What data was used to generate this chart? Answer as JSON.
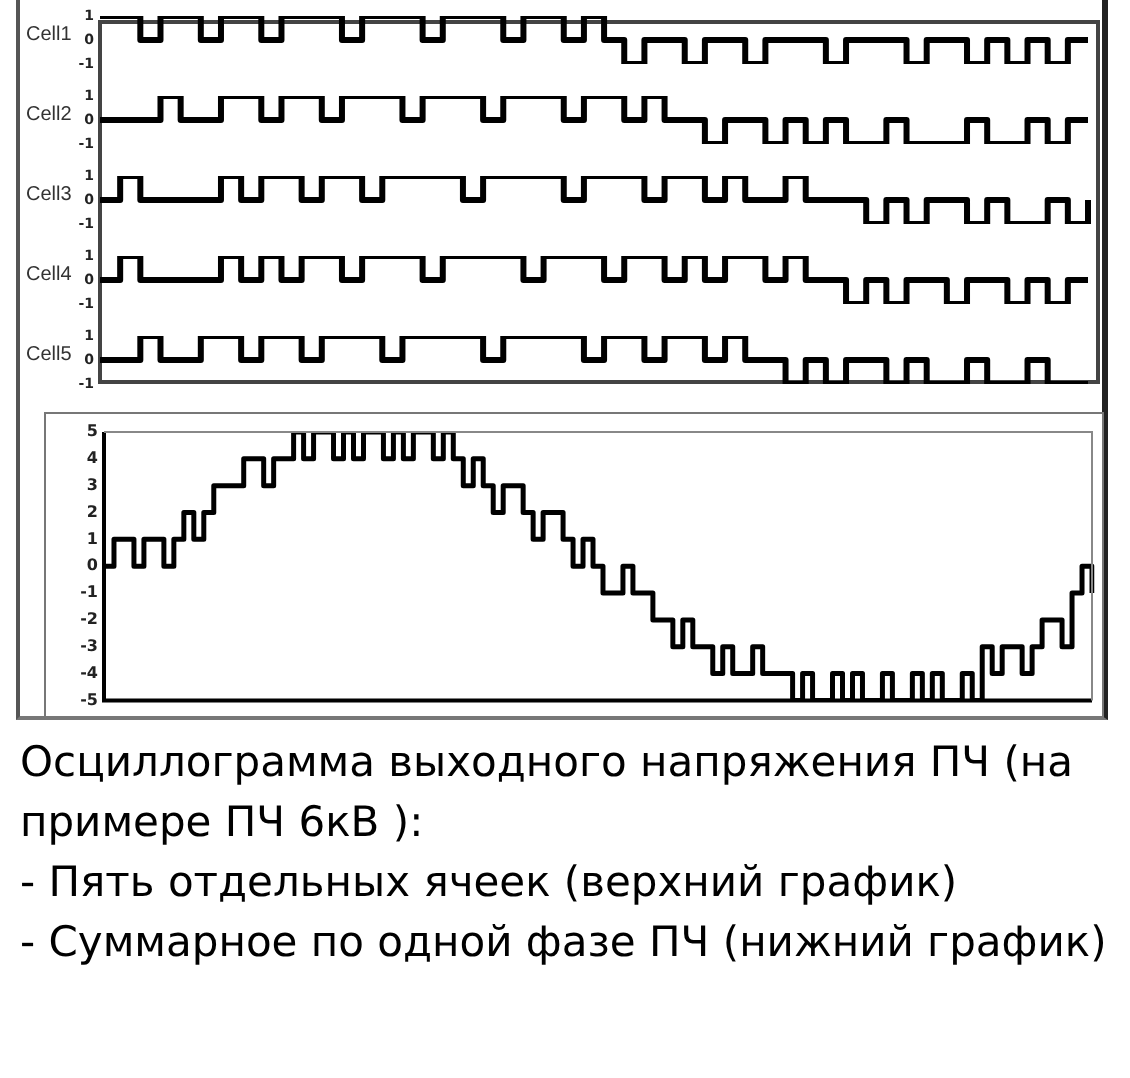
{
  "chart_data": [
    {
      "type": "step",
      "ylabel": "Cell1",
      "categories": [
        null,
        null,
        null,
        null,
        null,
        null,
        null,
        null,
        null,
        null,
        null,
        null,
        null,
        null,
        null,
        null,
        null,
        null,
        null,
        null,
        null,
        null,
        null,
        null,
        null,
        null,
        null,
        null,
        null,
        null,
        null,
        null,
        null,
        null,
        null,
        null,
        null,
        null,
        null,
        null,
        null,
        null,
        null,
        null,
        null,
        null,
        null,
        null,
        null,
        null
      ],
      "values": [
        1,
        1,
        0,
        1,
        1,
        0,
        1,
        1,
        0,
        1,
        1,
        1,
        0,
        1,
        1,
        1,
        0,
        1,
        1,
        1,
        0,
        1,
        1,
        0,
        1,
        0,
        -1,
        0,
        0,
        -1,
        0,
        0,
        -1,
        0,
        0,
        0,
        -1,
        0,
        0,
        0,
        -1,
        0,
        0,
        -1,
        0,
        -1,
        0,
        -1,
        0,
        0
      ],
      "color": "#000000",
      "ylim": [
        -1,
        1
      ],
      "yticks": [
        1,
        0,
        -1
      ],
      "tick_labels": "y"
    },
    {
      "type": "step",
      "ylabel": "Cell2",
      "categories": [
        null,
        null,
        null,
        null,
        null,
        null,
        null,
        null,
        null,
        null,
        null,
        null,
        null,
        null,
        null,
        null,
        null,
        null,
        null,
        null,
        null,
        null,
        null,
        null,
        null,
        null,
        null,
        null,
        null,
        null,
        null,
        null,
        null,
        null,
        null,
        null,
        null,
        null,
        null,
        null,
        null,
        null,
        null,
        null,
        null,
        null,
        null,
        null,
        null,
        null
      ],
      "values": [
        0,
        0,
        0,
        1,
        0,
        0,
        1,
        1,
        0,
        1,
        1,
        0,
        1,
        1,
        1,
        0,
        1,
        1,
        1,
        0,
        1,
        1,
        1,
        0,
        1,
        1,
        0,
        1,
        0,
        0,
        -1,
        0,
        0,
        -1,
        0,
        -1,
        0,
        -1,
        -1,
        0,
        -1,
        -1,
        -1,
        0,
        -1,
        -1,
        0,
        -1,
        0,
        0
      ],
      "color": "#000000",
      "ylim": [
        -1,
        1
      ],
      "yticks": [
        1,
        0,
        -1
      ],
      "tick_labels": "y"
    },
    {
      "type": "step",
      "ylabel": "Cell3",
      "categories": [
        null,
        null,
        null,
        null,
        null,
        null,
        null,
        null,
        null,
        null,
        null,
        null,
        null,
        null,
        null,
        null,
        null,
        null,
        null,
        null,
        null,
        null,
        null,
        null,
        null,
        null,
        null,
        null,
        null,
        null,
        null,
        null,
        null,
        null,
        null,
        null,
        null,
        null,
        null,
        null,
        null,
        null,
        null,
        null,
        null,
        null,
        null,
        null,
        null,
        null
      ],
      "values": [
        0,
        1,
        0,
        0,
        0,
        0,
        1,
        0,
        1,
        1,
        0,
        1,
        1,
        0,
        1,
        1,
        1,
        1,
        0,
        1,
        1,
        1,
        1,
        0,
        1,
        1,
        1,
        0,
        1,
        1,
        0,
        1,
        0,
        0,
        1,
        0,
        0,
        0,
        -1,
        0,
        -1,
        0,
        0,
        -1,
        0,
        -1,
        -1,
        0,
        -1,
        0
      ],
      "color": "#000000",
      "ylim": [
        -1,
        1
      ],
      "yticks": [
        1,
        0,
        -1
      ],
      "tick_labels": "y"
    },
    {
      "type": "step",
      "ylabel": "Cell4",
      "categories": [
        null,
        null,
        null,
        null,
        null,
        null,
        null,
        null,
        null,
        null,
        null,
        null,
        null,
        null,
        null,
        null,
        null,
        null,
        null,
        null,
        null,
        null,
        null,
        null,
        null,
        null,
        null,
        null,
        null,
        null,
        null,
        null,
        null,
        null,
        null,
        null,
        null,
        null,
        null,
        null,
        null,
        null,
        null,
        null,
        null,
        null,
        null,
        null,
        null,
        null
      ],
      "values": [
        0,
        1,
        0,
        0,
        0,
        0,
        1,
        0,
        1,
        0,
        1,
        1,
        0,
        1,
        1,
        1,
        0,
        1,
        1,
        1,
        1,
        0,
        1,
        1,
        1,
        0,
        1,
        1,
        0,
        1,
        0,
        1,
        1,
        0,
        1,
        0,
        0,
        -1,
        0,
        -1,
        0,
        0,
        -1,
        0,
        0,
        -1,
        0,
        -1,
        0,
        0
      ],
      "color": "#000000",
      "ylim": [
        -1,
        1
      ],
      "yticks": [
        1,
        0,
        -1
      ],
      "tick_labels": "y"
    },
    {
      "type": "step",
      "ylabel": "Cell5",
      "categories": [
        null,
        null,
        null,
        null,
        null,
        null,
        null,
        null,
        null,
        null,
        null,
        null,
        null,
        null,
        null,
        null,
        null,
        null,
        null,
        null,
        null,
        null,
        null,
        null,
        null,
        null,
        null,
        null,
        null,
        null,
        null,
        null,
        null,
        null,
        null,
        null,
        null,
        null,
        null,
        null,
        null,
        null,
        null,
        null,
        null,
        null,
        null,
        null,
        null,
        null
      ],
      "values": [
        0,
        0,
        1,
        0,
        0,
        1,
        1,
        0,
        1,
        1,
        0,
        1,
        1,
        1,
        0,
        1,
        1,
        1,
        1,
        0,
        1,
        1,
        1,
        1,
        0,
        1,
        1,
        0,
        1,
        1,
        0,
        1,
        0,
        0,
        -1,
        0,
        -1,
        0,
        0,
        -1,
        0,
        -1,
        -1,
        0,
        -1,
        -1,
        0,
        -1,
        -1,
        -1
      ],
      "color": "#000000",
      "ylim": [
        -1,
        1
      ],
      "yticks": [
        1,
        0,
        -1
      ],
      "tick_labels": "y"
    },
    {
      "type": "step",
      "categories": [
        null,
        null,
        null,
        null,
        null,
        null,
        null,
        null,
        null,
        null,
        null,
        null,
        null,
        null,
        null,
        null,
        null,
        null,
        null,
        null,
        null,
        null,
        null,
        null,
        null,
        null,
        null,
        null,
        null,
        null,
        null,
        null,
        null,
        null,
        null,
        null,
        null,
        null,
        null,
        null,
        null,
        null,
        null,
        null,
        null,
        null,
        null,
        null,
        null,
        null,
        null,
        null,
        null,
        null,
        null,
        null,
        null,
        null,
        null,
        null,
        null,
        null,
        null,
        null,
        null,
        null,
        null,
        null,
        null,
        null,
        null,
        null,
        null,
        null,
        null,
        null,
        null,
        null,
        null,
        null,
        null,
        null,
        null,
        null,
        null,
        null,
        null,
        null,
        null,
        null,
        null,
        null,
        null,
        null,
        null,
        null,
        null,
        null,
        null,
        null
      ],
      "values": [
        0,
        1,
        1,
        0,
        1,
        1,
        0,
        1,
        2,
        1,
        2,
        3,
        3,
        3,
        4,
        4,
        3,
        4,
        4,
        5,
        4,
        5,
        5,
        4,
        5,
        4,
        5,
        5,
        4,
        5,
        4,
        5,
        5,
        4,
        5,
        4,
        3,
        4,
        3,
        2,
        3,
        3,
        2,
        1,
        2,
        2,
        1,
        0,
        1,
        0,
        -1,
        -1,
        0,
        -1,
        -1,
        -2,
        -2,
        -3,
        -2,
        -3,
        -3,
        -4,
        -3,
        -4,
        -4,
        -3,
        -4,
        -4,
        -4,
        -5,
        -4,
        -5,
        -5,
        -4,
        -5,
        -4,
        -5,
        -5,
        -4,
        -5,
        -5,
        -4,
        -5,
        -4,
        -5,
        -5,
        -4,
        -5,
        -3,
        -4,
        -3,
        -3,
        -4,
        -3,
        -2,
        -2,
        -3,
        -1,
        0,
        -1
      ],
      "color": "#000000",
      "ylim": [
        -5,
        5
      ],
      "yticks": [
        5,
        4,
        3,
        2,
        1,
        0,
        -1,
        -2,
        -3,
        -4,
        -5
      ],
      "tick_labels": "y",
      "annotations": [
        "Осциллограмма выходного напряжения ПЧ (на примере ПЧ 6кВ ):",
        "- Пять отдельных ячеек (верхний график)",
        "- Суммарное по одной фазе ПЧ (нижний график)"
      ]
    }
  ]
}
